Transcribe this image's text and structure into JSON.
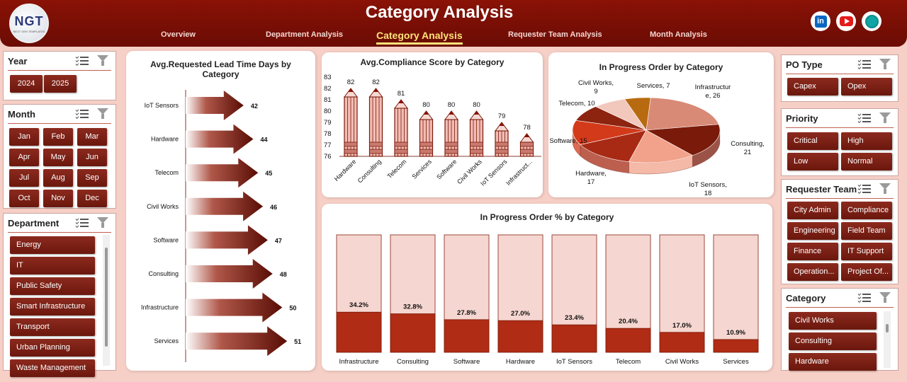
{
  "header": {
    "title": "Category Analysis",
    "logo_text": "NGT",
    "logo_sub": "NEXT GEN TEMPLATES",
    "nav": [
      "Overview",
      "Department Analysis",
      "Category Analysis",
      "Requester Team Analysis",
      "Month Analysis"
    ],
    "active_nav": "Category Analysis",
    "social": [
      "linkedin-icon",
      "youtube-icon",
      "globe-icon"
    ]
  },
  "slicers": {
    "year": {
      "title": "Year",
      "items": [
        "2024",
        "2025"
      ]
    },
    "month": {
      "title": "Month",
      "items": [
        "Jan",
        "Feb",
        "Mar",
        "Apr",
        "May",
        "Jun",
        "Jul",
        "Aug",
        "Sep",
        "Oct",
        "Nov",
        "Dec"
      ]
    },
    "department": {
      "title": "Department",
      "items": [
        "Energy",
        "IT",
        "Public Safety",
        "Smart Infrastructure",
        "Transport",
        "Urban Planning",
        "Waste Management"
      ]
    },
    "po_type": {
      "title": "PO Type",
      "items": [
        "Capex",
        "Opex"
      ]
    },
    "priority": {
      "title": "Priority",
      "items": [
        "Critical",
        "High",
        "Low",
        "Normal"
      ]
    },
    "requester_team": {
      "title": "Requester Team",
      "items": [
        "City Admin",
        "Compliance",
        "Engineering",
        "Field Team",
        "Finance",
        "IT Support",
        "Operation...",
        "Project Of..."
      ]
    },
    "category": {
      "title": "Category",
      "items": [
        "Civil Works",
        "Consulting",
        "Hardware"
      ]
    }
  },
  "colors": {
    "brand_dark": "#6b170d",
    "brand": "#8a1206",
    "accent": "#ffe27a",
    "pale": "#f6d6d0"
  },
  "charts": {
    "lead_time": {
      "title": "Avg.Requested Lead Time Days by Category",
      "chart_data": {
        "type": "bar",
        "orientation": "horizontal",
        "categories": [
          "IoT Sensors",
          "Hardware",
          "Telecom",
          "Civil Works",
          "Software",
          "Consulting",
          "Infrastructure",
          "Services"
        ],
        "values": [
          42,
          44,
          45,
          46,
          47,
          48,
          50,
          51
        ]
      }
    },
    "compliance": {
      "title": "Avg.Compliance Score by Category",
      "chart_data": {
        "type": "bar",
        "categories": [
          "Hardware",
          "Consulting",
          "Telecom",
          "Services",
          "Software",
          "Civil Works",
          "IoT Sensors",
          "Infrastruct..."
        ],
        "values": [
          82,
          82,
          81,
          80,
          80,
          80,
          79,
          78
        ],
        "ylim": [
          76,
          83
        ],
        "yticks": [
          "83",
          "82",
          "81",
          "80",
          "79",
          "78",
          "77",
          "76"
        ]
      }
    },
    "in_progress": {
      "title": "In Progress Order by Category",
      "chart_data": {
        "type": "pie",
        "labels": [
          "Infrastructure",
          "Consulting",
          "IoT Sensors",
          "Hardware",
          "Software",
          "Telecom",
          "Civil Works",
          "Services"
        ],
        "values": [
          26,
          21,
          18,
          17,
          15,
          10,
          9,
          7
        ],
        "slice_labels": [
          "Infrastructur\ne, 26",
          "Consulting,\n21",
          "IoT Sensors,\n18",
          "Hardware,\n17",
          "Software, 15",
          "Telecom, 10",
          "Civil Works,\n9",
          "Services, 7"
        ],
        "colors": [
          "#d98a76",
          "#7a1a0a",
          "#f2a28a",
          "#a82a14",
          "#d23a1a",
          "#8c2410",
          "#f2c8bc",
          "#b86a10"
        ]
      }
    },
    "in_progress_pct": {
      "title": "In Progress Order % by Category",
      "chart_data": {
        "type": "bar",
        "stacked_percent": true,
        "categories": [
          "Infrastructure",
          "Consulting",
          "Software",
          "Hardware",
          "IoT Sensors",
          "Telecom",
          "Civil Works",
          "Services"
        ],
        "values": [
          34.2,
          32.8,
          27.8,
          27.0,
          23.4,
          20.4,
          17.0,
          10.9
        ],
        "labels": [
          "34.2%",
          "32.8%",
          "27.8%",
          "27.0%",
          "23.4%",
          "20.4%",
          "17.0%",
          "10.9%"
        ],
        "ylim": [
          0,
          100
        ]
      }
    }
  }
}
